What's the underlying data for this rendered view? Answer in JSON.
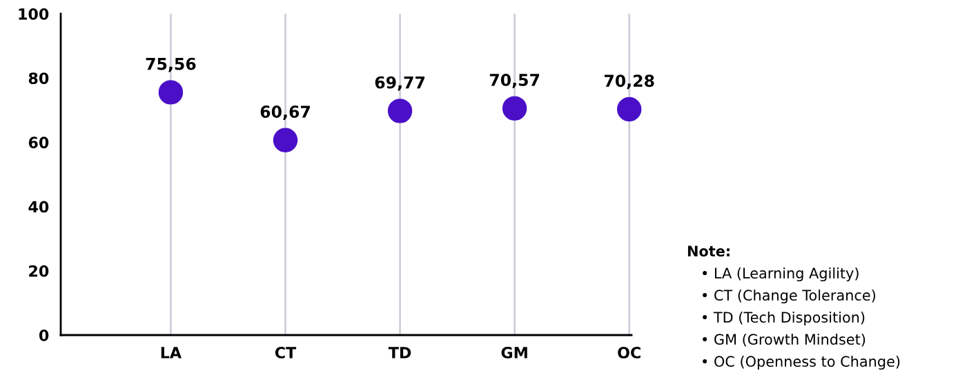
{
  "chart_data": {
    "type": "scatter",
    "categories": [
      "LA",
      "CT",
      "TD",
      "GM",
      "OC"
    ],
    "values": [
      75.56,
      60.67,
      69.77,
      70.57,
      70.28
    ],
    "value_labels": [
      "75,56",
      "60,67",
      "69,77",
      "70,57",
      "70,28"
    ],
    "color": "#4a0fc7",
    "marker": "circle",
    "ylim": [
      0,
      100
    ],
    "yticks": [
      0,
      20,
      40,
      60,
      80,
      100
    ],
    "grid": "x",
    "annotations": [
      "Note:",
      "• LA (Learning Agility)",
      "• CT (Change Tolerance)",
      "• TD (Tech Disposition)",
      "• GM (Growth Mindset)",
      "• OC (Openness to Change)"
    ]
  }
}
